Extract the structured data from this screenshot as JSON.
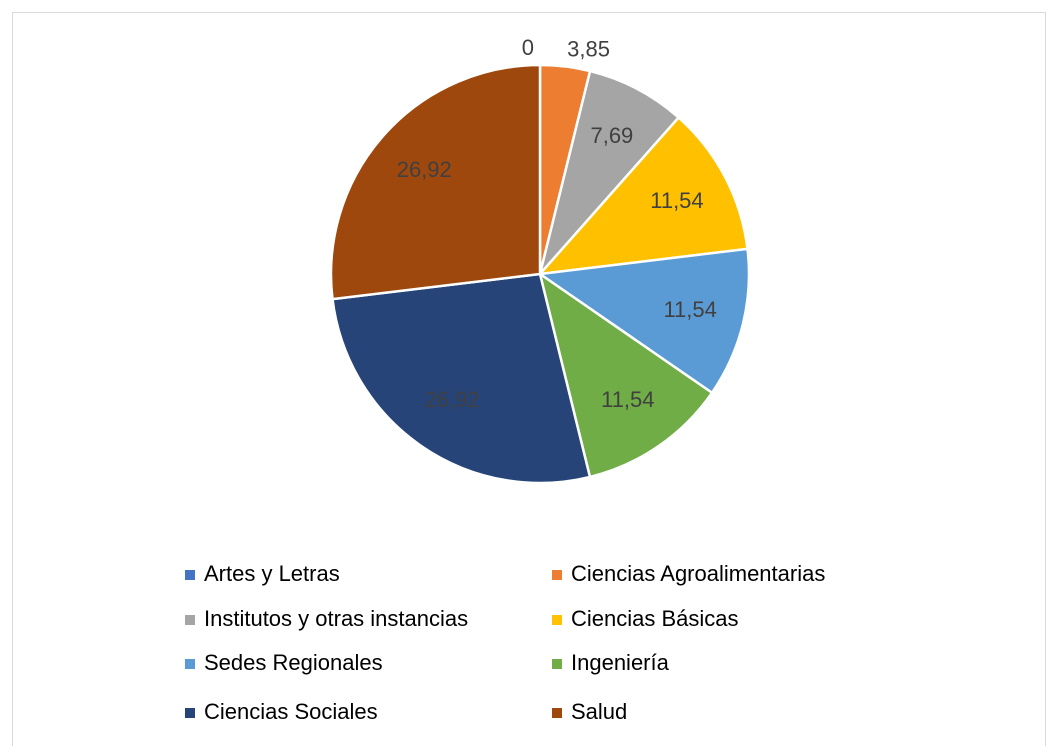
{
  "chart_data": {
    "type": "pie",
    "categories": [
      "Artes y Letras",
      "Ciencias Agroalimentarias",
      "Institutos y otras instancias",
      "Ciencias Básicas",
      "Sedes Regionales",
      "Ingeniería",
      "Ciencias Sociales",
      "Salud"
    ],
    "values": [
      0,
      3.85,
      7.69,
      11.54,
      11.54,
      11.54,
      26.92,
      26.92
    ],
    "value_labels": [
      "0",
      "3,85",
      "7,69",
      "11,54",
      "11,54",
      "11,54",
      "26,92",
      "26,92"
    ],
    "colors": [
      "#4472c4",
      "#ed7d31",
      "#a5a5a5",
      "#ffc000",
      "#5b9bd5",
      "#70ad47",
      "#264478",
      "#9e480e"
    ],
    "legend": "bottom"
  }
}
